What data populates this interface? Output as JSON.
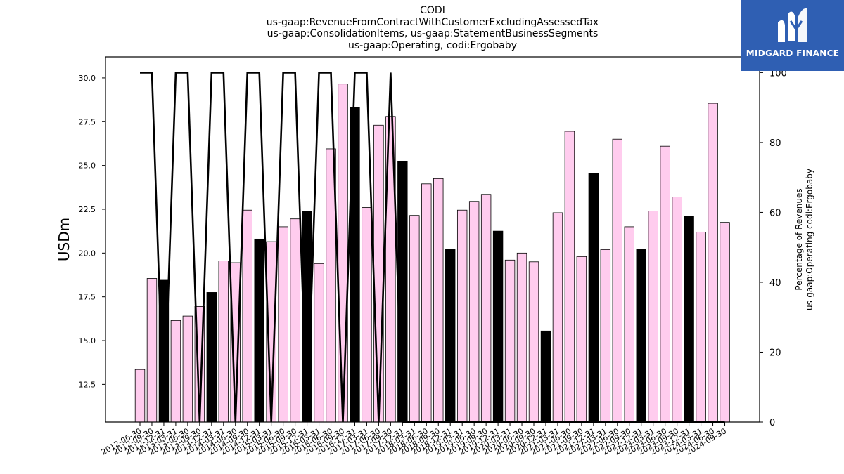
{
  "title_lines": [
    "CODI",
    "us-gaap:RevenueFromContractWithCustomerExcludingAssessedTax",
    "us-gaap:ConsolidationItems, us-gaap:StatementBusinessSegments",
    "us-gaap:Operating, codi:Ergobaby"
  ],
  "logo": {
    "text": "MIDGARD FINANCE",
    "color": "#2f5fb3"
  },
  "chart_data": {
    "type": "bar",
    "colors": {
      "bar_default": "#ffccee",
      "bar_highlight": "#000000",
      "line": "#000000"
    },
    "categories": [
      "2012-06-30",
      "2012-09-30",
      "2012-12-31",
      "2013-03-31",
      "2013-06-30",
      "2013-09-30",
      "2013-12-31",
      "2014-03-31",
      "2014-06-30",
      "2014-09-30",
      "2014-12-31",
      "2015-03-31",
      "2015-06-30",
      "2015-09-30",
      "2015-12-31",
      "2016-03-31",
      "2016-06-30",
      "2016-09-30",
      "2016-12-31",
      "2017-03-31",
      "2017-06-30",
      "2017-09-30",
      "2017-12-31",
      "2018-03-31",
      "2018-06-30",
      "2018-09-30",
      "2018-12-31",
      "2019-03-31",
      "2019-06-30",
      "2019-09-30",
      "2019-12-31",
      "2020-03-31",
      "2020-06-30",
      "2020-09-30",
      "2020-12-31",
      "2021-03-31",
      "2021-06-30",
      "2021-09-30",
      "2021-12-31",
      "2022-03-31",
      "2022-06-30",
      "2022-09-30",
      "2022-12-31",
      "2023-03-31",
      "2023-06-30",
      "2023-09-30",
      "2023-12-31",
      "2024-03-31",
      "2024-06-30",
      "2024-09-30"
    ],
    "series": [
      {
        "axis": "left",
        "values": [
          13.35,
          18.55,
          18.45,
          16.15,
          16.4,
          16.95,
          17.75,
          19.55,
          19.45,
          22.45,
          20.8,
          20.65,
          21.5,
          21.95,
          22.4,
          19.4,
          25.95,
          29.65,
          28.3,
          22.6,
          27.3,
          27.8,
          25.25,
          22.15,
          23.95,
          24.25,
          20.2,
          22.45,
          22.95,
          23.35,
          21.25,
          19.6,
          20.0,
          19.5,
          15.55,
          22.3,
          26.95,
          19.8,
          24.55,
          20.2,
          26.5,
          21.5,
          20.2,
          22.4,
          26.1,
          23.2,
          22.1,
          21.2,
          28.55,
          21.75
        ],
        "highlight": [
          false,
          false,
          true,
          false,
          false,
          false,
          true,
          false,
          false,
          false,
          true,
          false,
          false,
          false,
          true,
          false,
          false,
          false,
          true,
          false,
          false,
          false,
          true,
          false,
          false,
          false,
          true,
          false,
          false,
          false,
          true,
          false,
          false,
          false,
          true,
          false,
          false,
          false,
          true,
          false,
          false,
          false,
          true,
          false,
          false,
          false,
          true,
          false,
          false,
          false
        ]
      },
      {
        "axis": "right",
        "values": [
          100,
          100,
          0,
          100,
          100,
          0,
          100,
          100,
          0,
          100,
          100,
          0,
          100,
          100,
          0,
          100,
          100,
          0,
          100,
          100,
          0,
          100,
          0,
          0,
          0,
          0,
          0,
          0,
          0,
          0,
          0,
          0,
          0,
          0,
          0,
          0,
          0,
          0,
          0,
          0,
          0,
          0,
          0,
          0,
          0,
          0,
          0,
          0,
          0,
          0
        ]
      }
    ],
    "ylabel": "USDm",
    "ylim": [
      10.35,
      31.2
    ],
    "yticks": [
      "12.5",
      "15.0",
      "17.5",
      "20.0",
      "22.5",
      "25.0",
      "27.5",
      "30.0"
    ],
    "y2label_lines": [
      "Percentage of Revenues",
      "us-gaap:Operating codi:Ergobaby"
    ],
    "y2lim": [
      0,
      104.5
    ],
    "y2ticks": [
      "0",
      "20",
      "40",
      "60",
      "80",
      "100"
    ],
    "grid": false
  }
}
